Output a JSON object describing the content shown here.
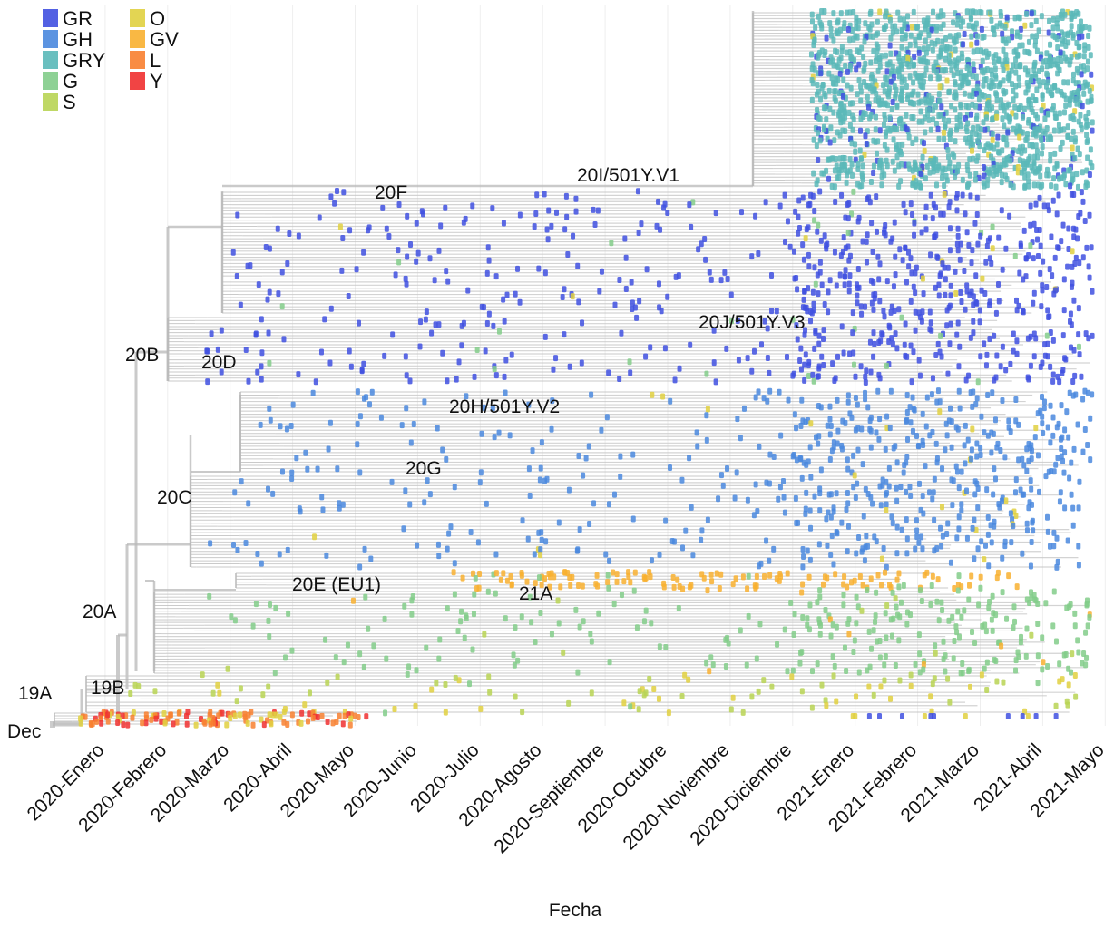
{
  "chart_data": {
    "type": "phylogenetic-tree",
    "title": "",
    "xlabel": "Fecha",
    "ylabel": "",
    "x_start_label": "Dec",
    "x_ticks": [
      "2020-Enero",
      "2020-Febrero",
      "2020-Marzo",
      "2020-Abril",
      "2020-Mayo",
      "2020-Junio",
      "2020-Julio",
      "2020-Agosto",
      "2020-Septiembre",
      "2020-Octubre",
      "2020-Noviembre",
      "2020-Diciembre",
      "2021-Enero",
      "2021-Febrero",
      "2021-Marzo",
      "2021-Abril",
      "2021-Mayo"
    ],
    "grid": true,
    "legend_placement": "top-left",
    "legend": [
      {
        "name": "GR",
        "color": "#4050e0"
      },
      {
        "name": "GH",
        "color": "#4a88de"
      },
      {
        "name": "GRY",
        "color": "#5ab8b8"
      },
      {
        "name": "G",
        "color": "#82cc8a"
      },
      {
        "name": "S",
        "color": "#b8d454"
      },
      {
        "name": "O",
        "color": "#e0d040"
      },
      {
        "name": "GV",
        "color": "#f8b030"
      },
      {
        "name": "L",
        "color": "#f88030"
      },
      {
        "name": "Y",
        "color": "#f03030"
      }
    ],
    "clades": [
      {
        "id": "v1",
        "label": "20I/501Y.V1",
        "genotype": "GRY",
        "first_month": "2020-Diciembre"
      },
      {
        "id": "f",
        "label": "20F",
        "genotype": "GR",
        "first_month": "2020-Febrero"
      },
      {
        "id": "v3",
        "label": "20J/501Y.V3",
        "genotype": "GR",
        "first_month": "2021-Enero"
      },
      {
        "id": "b",
        "label": "20B",
        "genotype": "GR",
        "first_month": "2020-Febrero"
      },
      {
        "id": "d",
        "label": "20D",
        "genotype": "GR",
        "first_month": "2020-Febrero"
      },
      {
        "id": "v2",
        "label": "20H/501Y.V2",
        "genotype": "GH",
        "first_month": "2020-Febrero"
      },
      {
        "id": "g",
        "label": "20G",
        "genotype": "GH",
        "first_month": "2020-Febrero"
      },
      {
        "id": "c",
        "label": "20C",
        "genotype": "GH",
        "first_month": "2020-Febrero"
      },
      {
        "id": "e",
        "label": "20E (EU1)",
        "genotype": "GV",
        "first_month": "2020-Junio"
      },
      {
        "id": "a21",
        "label": "21A",
        "genotype": "G",
        "first_month": "2020-Agosto"
      },
      {
        "id": "a",
        "label": "20A",
        "genotype": "G",
        "first_month": "2020-Enero"
      },
      {
        "id": "b19",
        "label": "19B",
        "genotype": "S",
        "first_month": "2020-Enero"
      },
      {
        "id": "a19",
        "label": "19A",
        "genotype": "L",
        "first_month": "Dec"
      }
    ]
  }
}
